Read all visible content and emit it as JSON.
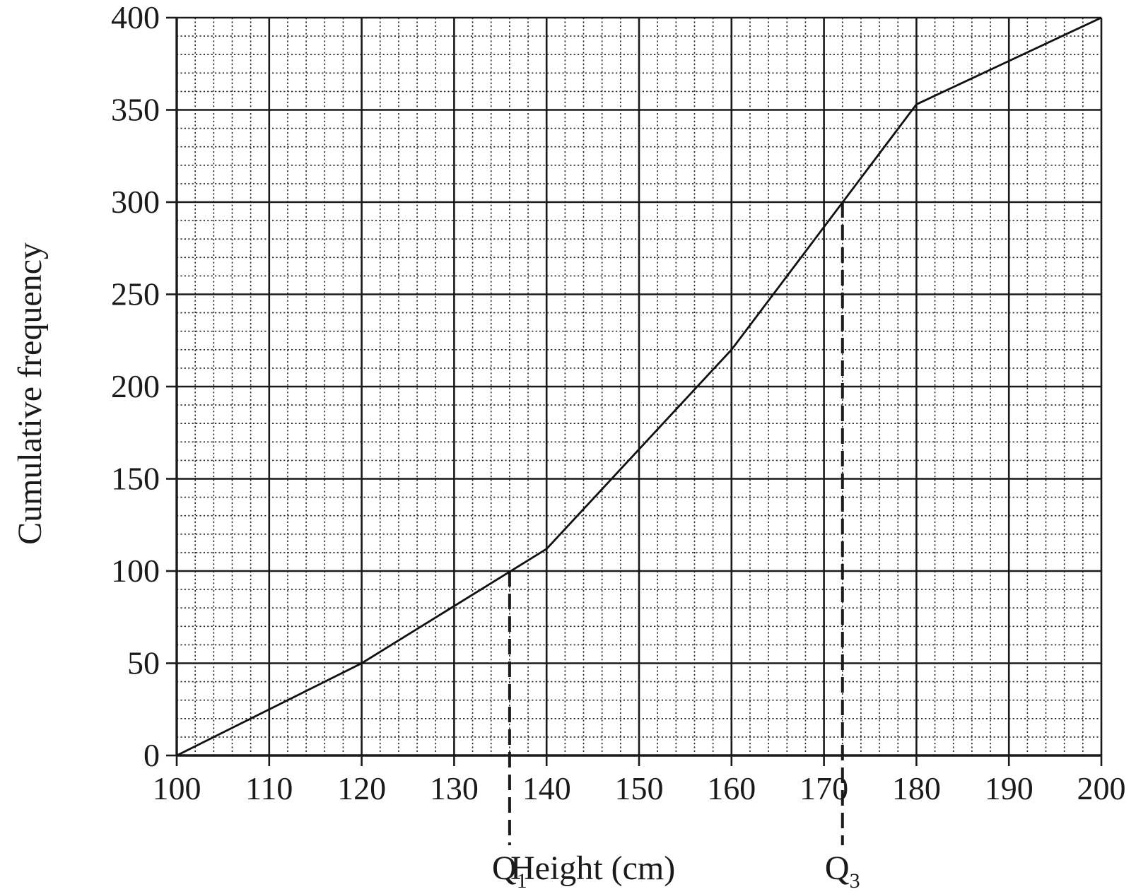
{
  "chart_data": {
    "type": "line",
    "xlabel": "Height (cm)",
    "ylabel": "Cumulative frequency",
    "xlim": [
      100,
      200
    ],
    "ylim": [
      0,
      400
    ],
    "x_ticks": [
      100,
      110,
      120,
      130,
      140,
      150,
      160,
      170,
      180,
      190,
      200
    ],
    "y_ticks": [
      0,
      50,
      100,
      150,
      200,
      250,
      300,
      350,
      400
    ],
    "minor_x_step": 2,
    "minor_y_step": 10,
    "grid": true,
    "series": [
      {
        "x": [
          100,
          120,
          140,
          160,
          180,
          200
        ],
        "y": [
          0,
          50,
          112,
          220,
          353,
          400
        ]
      }
    ],
    "quartile_markers": [
      {
        "label": "Q",
        "subscript": "1",
        "x": 136,
        "y": 100
      },
      {
        "label": "Q",
        "subscript": "3",
        "x": 172,
        "y": 300
      }
    ]
  }
}
